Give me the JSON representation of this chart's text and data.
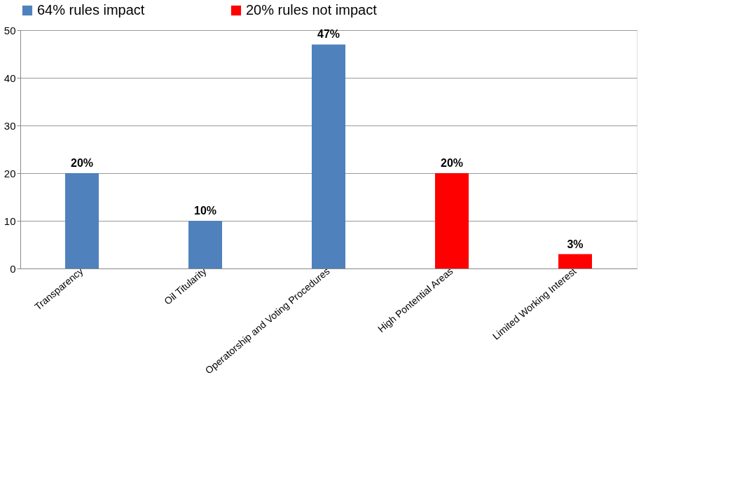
{
  "chart_data": {
    "type": "bar",
    "categories": [
      "Transparency",
      "Oil Titularity",
      "Operatorship and Voting Procedures",
      "High Pontential Areas",
      "Limited Working Interest"
    ],
    "series": [
      {
        "name": "64% rules impact",
        "color": "#4f81bd",
        "values": [
          20,
          10,
          47,
          null,
          null
        ],
        "value_labels": [
          "20%",
          "10%",
          "47%",
          null,
          null
        ]
      },
      {
        "name": "20% rules not impact",
        "color": "#ff0000",
        "values": [
          null,
          null,
          null,
          20,
          3
        ],
        "value_labels": [
          null,
          null,
          null,
          "20%",
          "3%"
        ]
      }
    ],
    "ylim": [
      0,
      50
    ],
    "yticks": [
      0,
      10,
      20,
      30,
      40,
      50
    ],
    "grid": "y",
    "legend": "top"
  }
}
